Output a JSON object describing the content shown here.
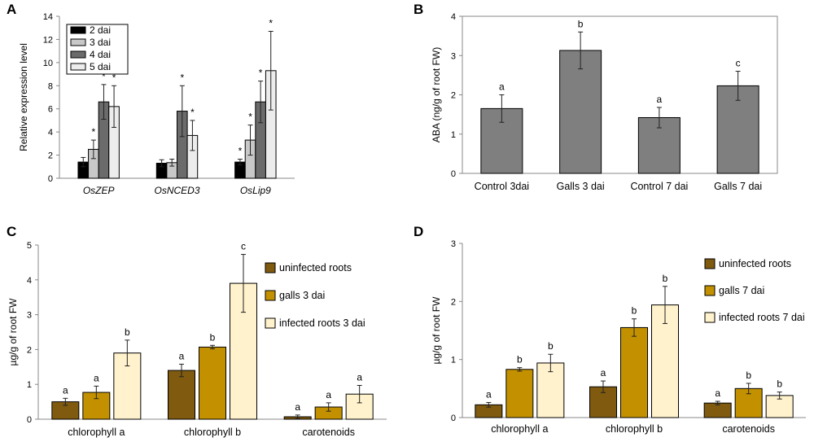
{
  "chart_data": [
    {
      "panel": "A",
      "type": "bar",
      "ylabel": "Relative expression level",
      "ylim": [
        0,
        14
      ],
      "yticks": [
        0,
        2,
        4,
        6,
        8,
        10,
        12,
        14
      ],
      "categories": [
        "OsZEP",
        "OsNCED3",
        "OsLip9"
      ],
      "legend_position": "top-left",
      "series": [
        {
          "name": "2 dai",
          "color": "#000000",
          "values": [
            1.4,
            1.3,
            1.4
          ],
          "errors": [
            0.4,
            0.3,
            0.25
          ],
          "labels": [
            "",
            "",
            "*"
          ]
        },
        {
          "name": "3 dai",
          "color": "#c8c8c8",
          "values": [
            2.5,
            1.35,
            3.3
          ],
          "errors": [
            0.8,
            0.3,
            1.3
          ],
          "labels": [
            "*",
            "",
            "*"
          ]
        },
        {
          "name": "4 dai",
          "color": "#6b6b6b",
          "values": [
            6.6,
            5.8,
            6.6
          ],
          "errors": [
            1.5,
            2.2,
            1.8
          ],
          "labels": [
            "*",
            "*",
            "*"
          ]
        },
        {
          "name": "5 dai",
          "color": "#ececec",
          "values": [
            6.2,
            3.7,
            9.3
          ],
          "errors": [
            1.8,
            1.3,
            3.4
          ],
          "labels": [
            "*",
            "*",
            "*"
          ]
        }
      ]
    },
    {
      "panel": "B",
      "type": "bar",
      "ylabel": "ABA (ng/g of root FW)",
      "ylim": [
        0,
        4
      ],
      "yticks": [
        0,
        1,
        2,
        3,
        4
      ],
      "categories": [
        "Control 3dai",
        "Galls 3 dai",
        "Control 7 dai",
        "Galls 7 dai"
      ],
      "series": [
        {
          "name": "ABA",
          "color": "#7f7f7f",
          "values": [
            1.65,
            3.13,
            1.42,
            2.23
          ],
          "errors": [
            0.35,
            0.47,
            0.26,
            0.37
          ],
          "labels": [
            "a",
            "b",
            "a",
            "c"
          ]
        }
      ]
    },
    {
      "panel": "C",
      "type": "bar",
      "ylabel": "µg/g of root FW",
      "ylim": [
        0,
        5
      ],
      "yticks": [
        0,
        1,
        2,
        3,
        4,
        5
      ],
      "categories": [
        "chlorophyll a",
        "chlorophyll b",
        "carotenoids"
      ],
      "legend_position": "right",
      "series": [
        {
          "name": "uninfected roots",
          "color": "#7f5a0f",
          "values": [
            0.5,
            1.4,
            0.07
          ],
          "errors": [
            0.1,
            0.18,
            0.05
          ],
          "labels": [
            "a",
            "a",
            "a"
          ]
        },
        {
          "name": "galls 3 dai",
          "color": "#c39100",
          "values": [
            0.77,
            2.07,
            0.35
          ],
          "errors": [
            0.18,
            0.05,
            0.12
          ],
          "labels": [
            "a",
            "b",
            "a"
          ]
        },
        {
          "name": "infected roots 3 dai",
          "color": "#fff2cc",
          "values": [
            1.9,
            3.9,
            0.72
          ],
          "errors": [
            0.37,
            0.83,
            0.25
          ],
          "labels": [
            "b",
            "c",
            "a"
          ]
        }
      ]
    },
    {
      "panel": "D",
      "type": "bar",
      "ylabel": "µg/g of root FW",
      "ylim": [
        0,
        3
      ],
      "yticks": [
        0,
        1,
        2,
        3
      ],
      "categories": [
        "chlorophyll a",
        "chlorophyll b",
        "carotenoids"
      ],
      "legend_position": "right",
      "series": [
        {
          "name": "uninfected roots",
          "color": "#7f5a0f",
          "values": [
            0.22,
            0.53,
            0.25
          ],
          "errors": [
            0.04,
            0.1,
            0.03
          ],
          "labels": [
            "a",
            "a",
            "a"
          ]
        },
        {
          "name": "galls 7 dai",
          "color": "#c39100",
          "values": [
            0.83,
            1.55,
            0.5
          ],
          "errors": [
            0.03,
            0.15,
            0.09
          ],
          "labels": [
            "b",
            "b",
            "b"
          ]
        },
        {
          "name": "infected roots 7 dai",
          "color": "#fff2cc",
          "values": [
            0.94,
            1.94,
            0.38
          ],
          "errors": [
            0.15,
            0.32,
            0.06
          ],
          "labels": [
            "b",
            "b",
            "b"
          ]
        }
      ]
    }
  ]
}
